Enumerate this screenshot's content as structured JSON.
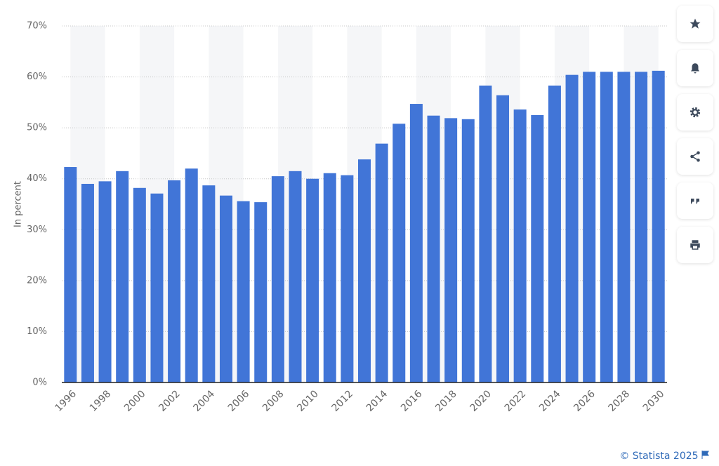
{
  "chart_data": {
    "type": "bar",
    "y_label": "In percent",
    "credit": "© Statista 2025",
    "categories": [
      "1996",
      null,
      "1998",
      null,
      "2000",
      null,
      "2002",
      null,
      "2004",
      null,
      "2006",
      null,
      "2008",
      null,
      "2010",
      null,
      "2012",
      null,
      "2014",
      null,
      "2016",
      null,
      "2018",
      null,
      "2020",
      null,
      "2022",
      null,
      "2024",
      null,
      "2026",
      null,
      "2028",
      null,
      "2030"
    ],
    "values": [
      42.3,
      39.0,
      39.5,
      41.5,
      38.2,
      37.1,
      39.7,
      42.0,
      38.7,
      36.7,
      35.6,
      35.4,
      40.5,
      41.5,
      40.0,
      41.1,
      40.7,
      43.8,
      46.9,
      50.8,
      54.7,
      52.4,
      51.9,
      51.7,
      58.3,
      56.4,
      53.6,
      52.5,
      58.3,
      60.4,
      61.0,
      61.0,
      61.0,
      61.0,
      61.2
    ],
    "color": "#4175d7",
    "ylim": [
      0,
      70
    ],
    "yticks": [
      {
        "value": 0,
        "label": "0%"
      },
      {
        "value": 10,
        "label": "10%"
      },
      {
        "value": 20,
        "label": "20%"
      },
      {
        "value": 30,
        "label": "30%"
      },
      {
        "value": 40,
        "label": "40%"
      },
      {
        "value": 50,
        "label": "50%"
      },
      {
        "value": 60,
        "label": "60%"
      },
      {
        "value": 70,
        "label": "70%"
      }
    ],
    "grid": true
  }
}
